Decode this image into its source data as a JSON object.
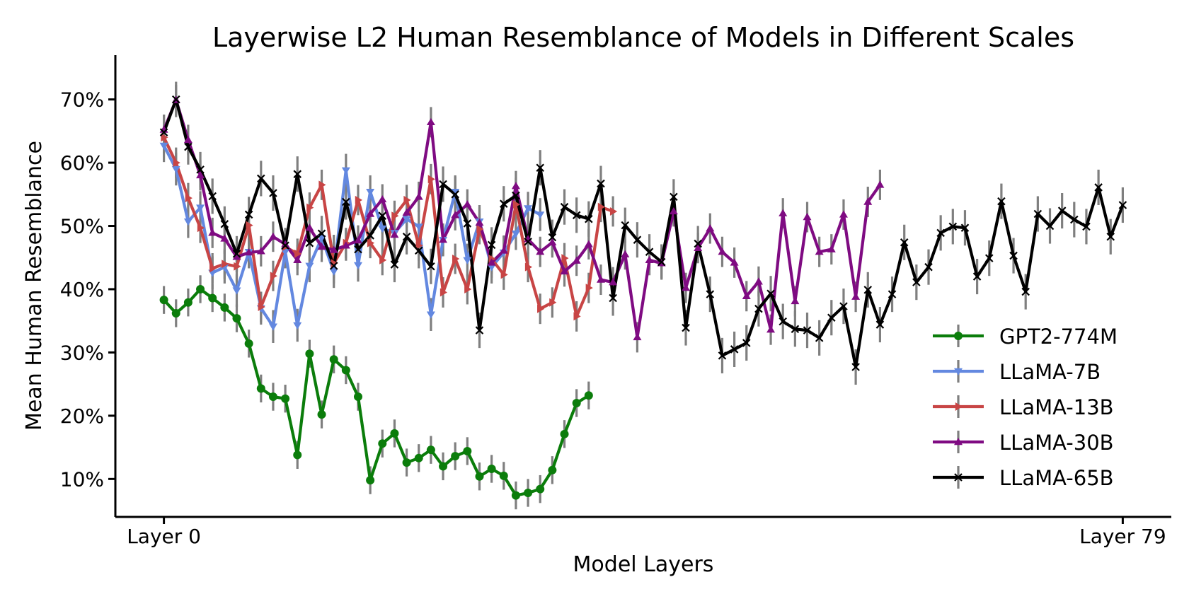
{
  "chart_data": {
    "type": "line",
    "title": "Layerwise L2 Human Resemblance of Models in Different Scales",
    "xlabel": "Model Layers",
    "ylabel": "Mean Human Resemblance",
    "xlim": [
      -4,
      83
    ],
    "ylim": [
      4,
      77
    ],
    "x_ticks": [
      {
        "value": 0,
        "label": "Layer 0"
      },
      {
        "value": 79,
        "label": "Layer 79"
      }
    ],
    "y_ticks": [
      {
        "value": 10,
        "label": "10%"
      },
      {
        "value": 20,
        "label": "20%"
      },
      {
        "value": 30,
        "label": "30%"
      },
      {
        "value": 40,
        "label": "40%"
      },
      {
        "value": 50,
        "label": "50%"
      },
      {
        "value": 60,
        "label": "60%"
      },
      {
        "value": 70,
        "label": "70%"
      }
    ],
    "grid": false,
    "legend_position": "lower-right",
    "error_bar_color": "#7f7f7f",
    "series": [
      {
        "name": "GPT2-774M",
        "color": "#0b7d0b",
        "marker": "circle",
        "error": 2.2,
        "values": [
          38.3,
          36.2,
          37.9,
          40.0,
          38.6,
          37.1,
          35.4,
          31.4,
          24.3,
          23.0,
          22.7,
          13.8,
          29.8,
          20.2,
          28.9,
          27.2,
          23.0,
          9.8,
          15.6,
          17.2,
          12.6,
          13.3,
          14.6,
          12.0,
          13.6,
          14.4,
          10.4,
          11.6,
          10.5,
          7.4,
          7.8,
          8.4,
          11.4,
          17.1,
          22.0,
          23.2
        ]
      },
      {
        "name": "LLaMA-7B",
        "color": "#6388e0",
        "marker": "tri_down",
        "error": 2.6,
        "values": [
          62.7,
          59.0,
          50.7,
          52.9,
          42.6,
          43.5,
          39.8,
          45.9,
          37.0,
          34.1,
          45.9,
          34.3,
          43.7,
          48.1,
          42.8,
          58.8,
          43.8,
          55.4,
          49.6,
          48.9,
          51.1,
          49.9,
          36.0,
          47.8,
          55.4,
          44.6,
          50.7,
          43.5,
          45.8,
          48.8,
          52.8,
          51.8
        ]
      },
      {
        "name": "LLaMA-13B",
        "color": "#c84545",
        "marker": "tri_right",
        "error": 2.4,
        "values": [
          64.0,
          60.0,
          54.4,
          49.7,
          43.3,
          44.0,
          43.6,
          50.1,
          37.2,
          42.1,
          46.7,
          45.6,
          52.9,
          56.5,
          44.1,
          47.3,
          54.1,
          47.3,
          44.6,
          51.6,
          54.1,
          46.9,
          57.4,
          39.5,
          44.8,
          40.0,
          49.5,
          44.8,
          42.3,
          53.4,
          43.5,
          36.9,
          37.9,
          44.9,
          35.7,
          40.2,
          53.0,
          52.3
        ]
      },
      {
        "name": "LLaMA-30B",
        "color": "#7f0b82",
        "marker": "tri_up",
        "error": 2.4,
        "values": [
          65.2,
          69.9,
          63.6,
          58.0,
          48.9,
          48.0,
          45.1,
          45.8,
          46.0,
          48.3,
          47.1,
          44.6,
          49.7,
          46.7,
          46.2,
          46.9,
          47.7,
          51.9,
          54.2,
          48.6,
          52.1,
          54.6,
          66.4,
          47.8,
          51.7,
          53.4,
          50.5,
          44.2,
          46.1,
          56.3,
          47.9,
          45.9,
          47.4,
          42.8,
          44.5,
          47.1,
          41.5,
          41.1,
          45.5,
          32.4,
          44.6,
          44.1,
          52.3,
          40.2,
          46.5,
          49.6,
          45.9,
          44.2,
          38.9,
          41.2,
          33.6,
          52.0,
          38.1,
          51.4,
          45.9,
          46.3,
          51.8,
          38.8,
          53.8,
          56.5
        ]
      },
      {
        "name": "LLaMA-65B",
        "color": "#000000",
        "marker": "x",
        "error": 2.8,
        "values": [
          64.8,
          70.0,
          62.5,
          58.9,
          54.7,
          50.3,
          45.6,
          51.8,
          57.5,
          55.2,
          46.9,
          58.2,
          47.3,
          48.8,
          43.7,
          53.8,
          46.3,
          48.5,
          51.6,
          43.9,
          48.3,
          46.1,
          43.6,
          56.6,
          55.0,
          50.4,
          33.5,
          47.0,
          53.5,
          54.8,
          47.5,
          59.2,
          48.2,
          53.0,
          51.7,
          51.1,
          56.7,
          38.6,
          50.1,
          47.8,
          45.9,
          44.3,
          54.6,
          33.9,
          47.2,
          39.2,
          29.5,
          30.5,
          31.5,
          36.9,
          39.3,
          34.9,
          33.7,
          33.5,
          32.3,
          35.5,
          37.3,
          27.7,
          39.9,
          34.4,
          39.2,
          47.4,
          41.1,
          43.5,
          48.9,
          49.9,
          49.7,
          42.0,
          44.9,
          53.9,
          45.3,
          39.6,
          51.9,
          50.0,
          52.4,
          51.0,
          49.9,
          56.1,
          48.3,
          53.3
        ]
      }
    ]
  }
}
